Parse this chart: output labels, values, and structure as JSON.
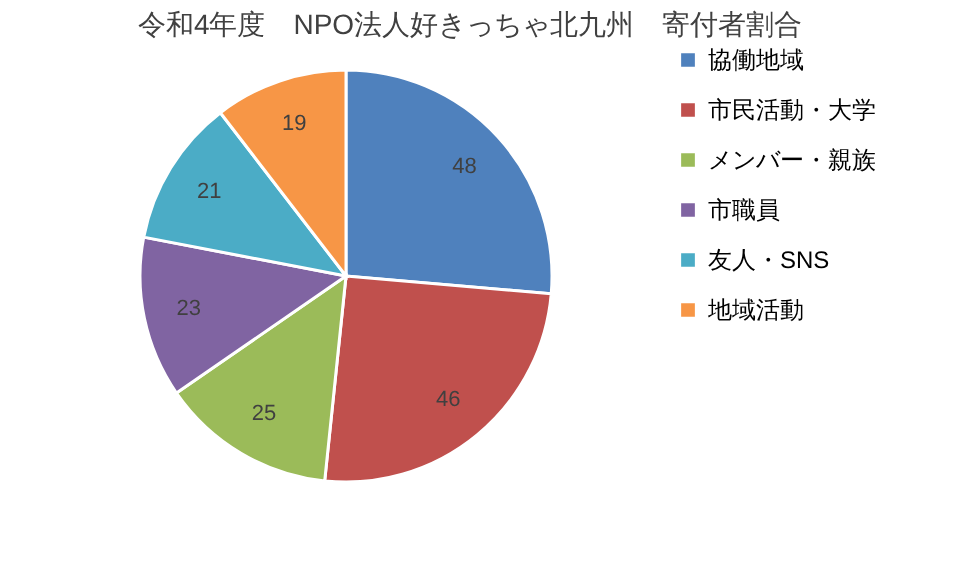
{
  "chart_data": {
    "type": "pie",
    "title": "令和4年度　NPO法人好きっちゃ北九州　寄付者割合",
    "categories": [
      "協働地域",
      "市民活動・大学",
      "メンバー・親族",
      "市職員",
      "友人・SNS",
      "地域活動"
    ],
    "values": [
      48,
      46,
      25,
      23,
      21,
      19
    ],
    "colors": [
      "#4f81bd",
      "#c0504d",
      "#9bbb59",
      "#8064a2",
      "#4bacc6",
      "#f79646"
    ],
    "data_labels": true,
    "legend": "right"
  }
}
